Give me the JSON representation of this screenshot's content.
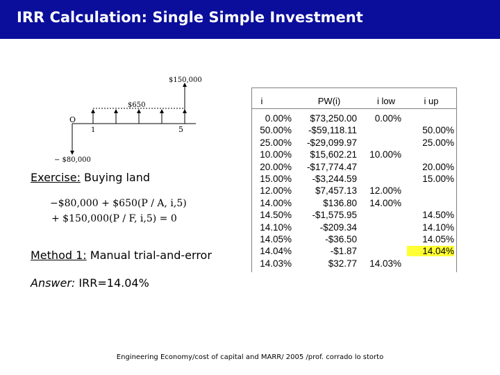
{
  "title": "IRR Calculation:  Single Simple Investment",
  "diagram": {
    "top_amount": "$150,000",
    "annual_amount": "$650",
    "origin_label": "O",
    "start_label": "1",
    "end_label": "5",
    "bottom_amount": "− $80,000"
  },
  "exercise": {
    "label": "Exercise:",
    "text": " Buying land"
  },
  "equation": {
    "line1": "−$80,000 + $650(P / A, i,5)",
    "line2": "+ $150,000(P / F, i,5) = 0"
  },
  "method": {
    "label": "Method 1:",
    "text": " Manual trial-and-error"
  },
  "answer": {
    "label": "Answer:",
    "text": " IRR=14.04%"
  },
  "table": {
    "headers": [
      "i",
      "PW(i)",
      "i low",
      "i up"
    ],
    "rows": [
      [
        "0.00%",
        "$73,250.00",
        "0.00%",
        ""
      ],
      [
        "50.00%",
        "-$59,118.11",
        "",
        "50.00%"
      ],
      [
        "25.00%",
        "-$29,099.97",
        "",
        "25.00%"
      ],
      [
        "10.00%",
        "$15,602.21",
        "10.00%",
        ""
      ],
      [
        "20.00%",
        "-$17,774.47",
        "",
        "20.00%"
      ],
      [
        "15.00%",
        "-$3,244.59",
        "",
        "15.00%"
      ],
      [
        "12.00%",
        "$7,457.13",
        "12.00%",
        ""
      ],
      [
        "14.00%",
        "$136.80",
        "14.00%",
        ""
      ],
      [
        "14.50%",
        "-$1,575.95",
        "",
        "14.50%"
      ],
      [
        "14.10%",
        "-$209.34",
        "",
        "14.10%"
      ],
      [
        "14.05%",
        "-$36.50",
        "",
        "14.05%"
      ],
      [
        "14.04%",
        "-$1.87",
        "",
        "14.04%"
      ],
      [
        "14.03%",
        "$32.77",
        "14.03%",
        ""
      ]
    ],
    "highlight_color": "#ffff33"
  },
  "footer": "Engineering Economy/cost of capital and MARR/ 2005 /prof. corrado lo storto"
}
